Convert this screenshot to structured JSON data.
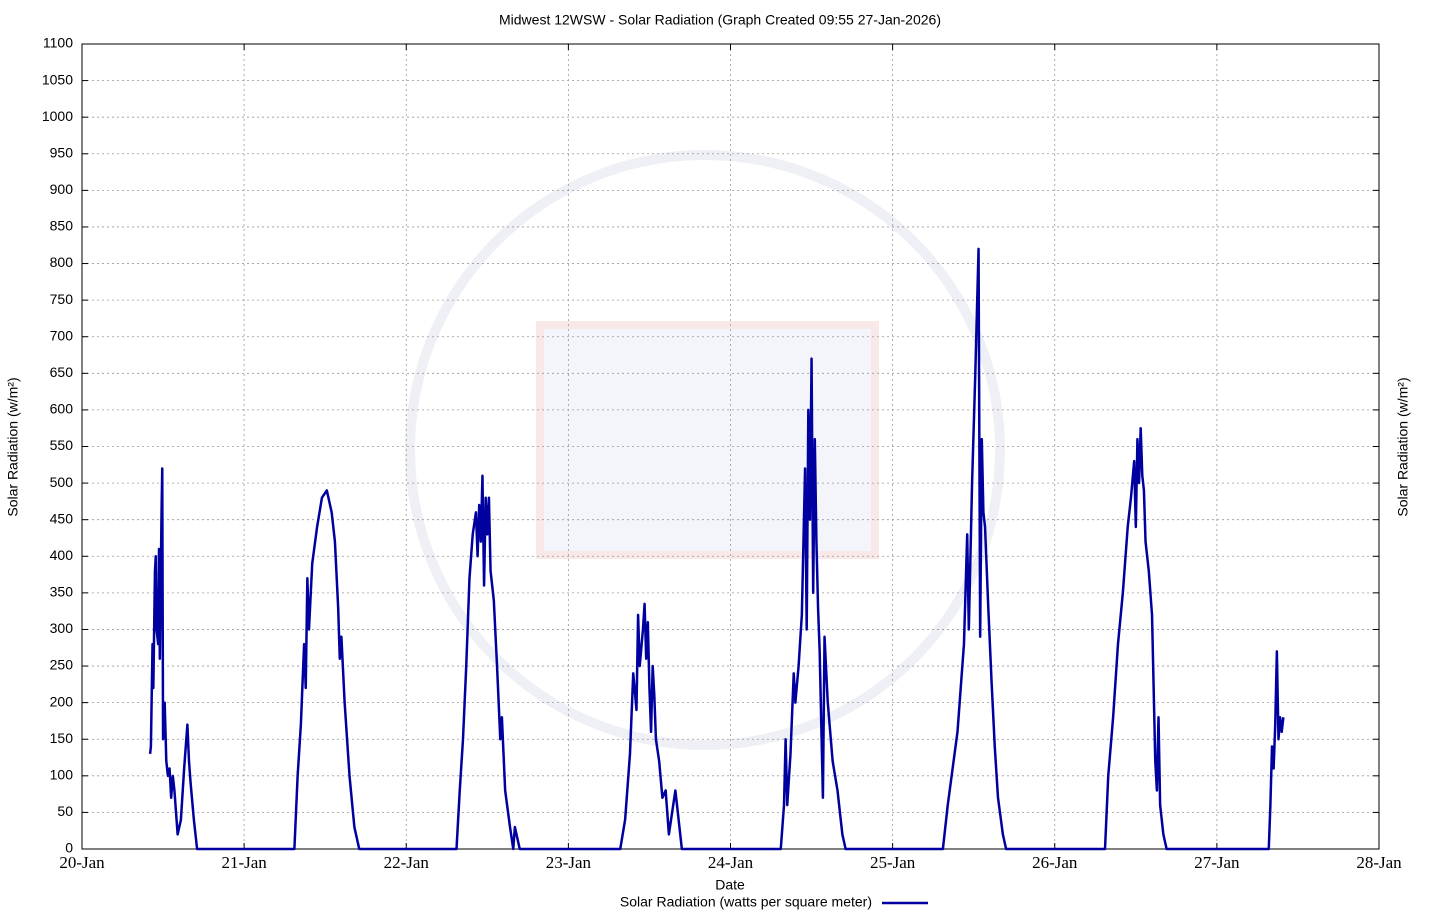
{
  "chart_data": {
    "type": "line",
    "title": "Midwest 12WSW - Solar Radiation (Graph Created 09:55 27-Jan-2026)",
    "x_label": "Date",
    "y_label": "Solar Radiation (w/m²)",
    "y2_label": "Solar Radiation (w/m²)",
    "xlim": [
      0,
      8
    ],
    "xticks": [
      {
        "value": 0,
        "label": "20-Jan"
      },
      {
        "value": 1,
        "label": "21-Jan"
      },
      {
        "value": 2,
        "label": "22-Jan"
      },
      {
        "value": 3,
        "label": "23-Jan"
      },
      {
        "value": 4,
        "label": "24-Jan"
      },
      {
        "value": 5,
        "label": "25-Jan"
      },
      {
        "value": 6,
        "label": "26-Jan"
      },
      {
        "value": 7,
        "label": "27-Jan"
      },
      {
        "value": 8,
        "label": "28-Jan"
      }
    ],
    "ylim": [
      0,
      1100
    ],
    "yticks": [
      0,
      50,
      100,
      150,
      200,
      250,
      300,
      350,
      400,
      450,
      500,
      550,
      600,
      650,
      700,
      750,
      800,
      850,
      900,
      950,
      1000,
      1050,
      1100
    ],
    "grid": true,
    "legend": "bottom",
    "x": [
      0.42,
      0.425,
      0.435,
      0.44,
      0.45,
      0.455,
      0.46,
      0.47,
      0.475,
      0.48,
      0.49,
      0.495,
      0.5,
      0.51,
      0.52,
      0.53,
      0.54,
      0.55,
      0.56,
      0.57,
      0.59,
      0.61,
      0.63,
      0.65,
      0.66,
      0.67,
      0.69,
      0.71,
      1.31,
      1.33,
      1.35,
      1.37,
      1.38,
      1.39,
      1.4,
      1.42,
      1.45,
      1.48,
      1.51,
      1.54,
      1.56,
      1.58,
      1.59,
      1.6,
      1.62,
      1.65,
      1.68,
      1.71,
      2.31,
      2.33,
      2.35,
      2.37,
      2.39,
      2.41,
      2.43,
      2.44,
      2.45,
      2.46,
      2.47,
      2.48,
      2.49,
      2.5,
      2.51,
      2.52,
      2.54,
      2.56,
      2.58,
      2.59,
      2.61,
      2.64,
      2.66,
      2.67,
      2.7,
      3.32,
      3.35,
      3.38,
      3.4,
      3.42,
      3.43,
      3.44,
      3.46,
      3.47,
      3.48,
      3.49,
      3.5,
      3.51,
      3.52,
      3.53,
      3.54,
      3.56,
      3.58,
      3.6,
      3.62,
      3.66,
      3.68,
      3.7,
      4.31,
      4.33,
      4.34,
      4.35,
      4.37,
      4.39,
      4.4,
      4.42,
      4.44,
      4.46,
      4.47,
      4.48,
      4.49,
      4.5,
      4.51,
      4.52,
      4.53,
      4.54,
      4.55,
      4.56,
      4.57,
      4.58,
      4.6,
      4.63,
      4.66,
      4.69,
      4.71,
      5.31,
      5.34,
      5.37,
      5.4,
      5.42,
      5.44,
      5.46,
      5.47,
      5.49,
      5.51,
      5.53,
      5.54,
      5.55,
      5.56,
      5.57,
      5.59,
      5.61,
      5.63,
      5.65,
      5.68,
      5.7,
      6.31,
      6.33,
      6.36,
      6.39,
      6.42,
      6.45,
      6.47,
      6.49,
      6.5,
      6.51,
      6.52,
      6.53,
      6.54,
      6.55,
      6.56,
      6.58,
      6.6,
      6.62,
      6.63,
      6.64,
      6.65,
      6.67,
      6.69,
      7.32,
      7.33,
      7.34,
      7.35,
      7.36,
      7.37,
      7.38,
      7.39,
      7.4,
      7.41
    ],
    "series": [
      {
        "name": "Solar Radiation (watts per square meter)",
        "color": "#0000a0",
        "values": [
          130,
          140,
          280,
          220,
          380,
          400,
          300,
          280,
          410,
          260,
          450,
          520,
          150,
          200,
          120,
          100,
          110,
          70,
          100,
          80,
          20,
          40,
          110,
          170,
          120,
          90,
          40,
          0,
          0,
          100,
          170,
          280,
          220,
          370,
          300,
          390,
          440,
          480,
          490,
          460,
          420,
          330,
          260,
          290,
          200,
          100,
          30,
          0,
          0,
          80,
          150,
          250,
          370,
          430,
          460,
          400,
          470,
          420,
          510,
          360,
          480,
          430,
          480,
          380,
          340,
          250,
          150,
          180,
          80,
          30,
          0,
          30,
          0,
          0,
          40,
          130,
          240,
          190,
          320,
          250,
          300,
          335,
          260,
          310,
          220,
          160,
          250,
          210,
          150,
          120,
          70,
          80,
          20,
          80,
          40,
          0,
          0,
          60,
          150,
          60,
          130,
          240,
          200,
          250,
          320,
          520,
          300,
          600,
          450,
          670,
          350,
          560,
          420,
          330,
          270,
          170,
          70,
          290,
          200,
          120,
          80,
          20,
          0,
          0,
          60,
          110,
          160,
          220,
          280,
          430,
          300,
          500,
          650,
          820,
          290,
          560,
          460,
          440,
          330,
          230,
          140,
          70,
          20,
          0,
          0,
          100,
          180,
          280,
          350,
          440,
          480,
          530,
          440,
          560,
          500,
          575,
          510,
          490,
          420,
          380,
          320,
          120,
          80,
          180,
          60,
          20,
          0,
          0,
          60,
          140,
          110,
          170,
          270,
          150,
          180,
          160,
          180
        ]
      }
    ]
  }
}
